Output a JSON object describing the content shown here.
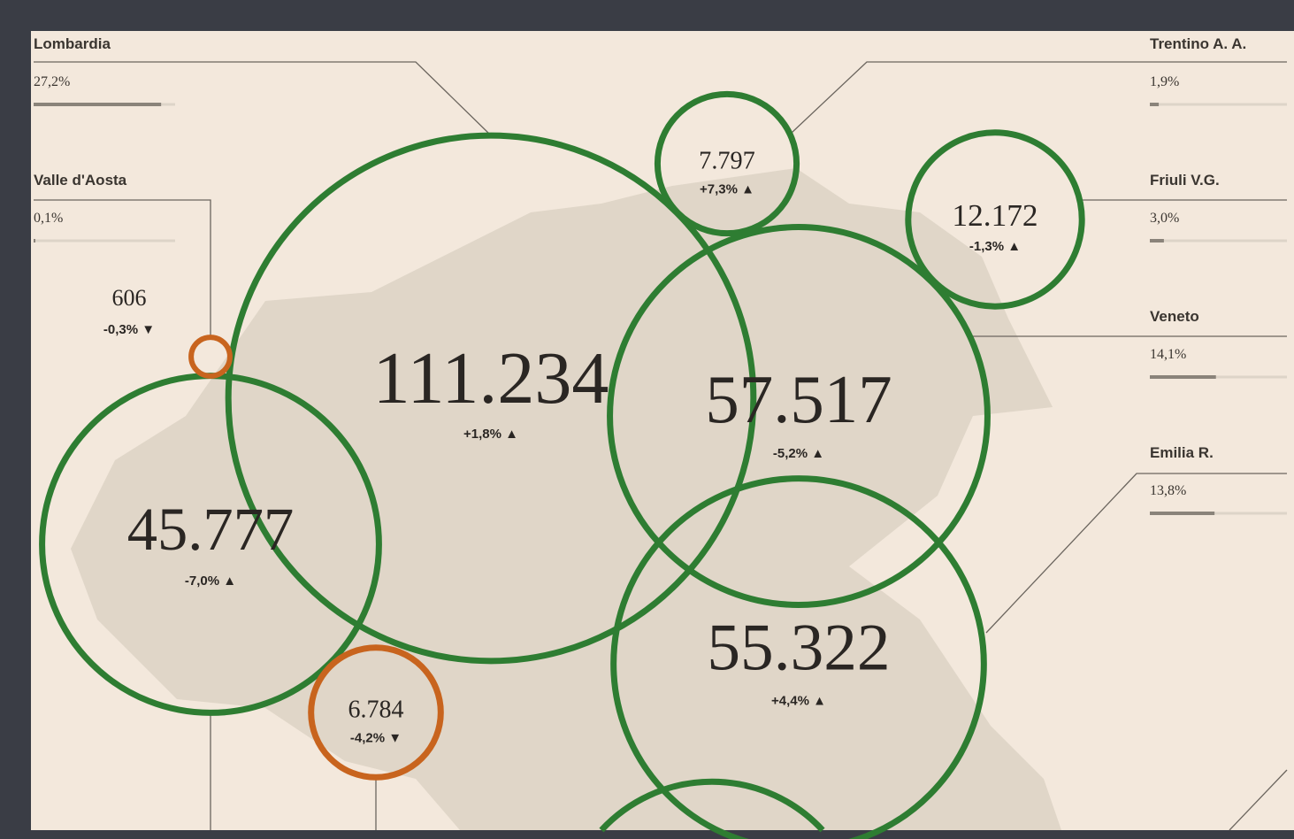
{
  "left_labels": [
    {
      "name": "Lombardia",
      "share_label": "27,2%",
      "share": 27.2
    },
    {
      "name": "Valle d'Aosta",
      "share_label": "0,1%",
      "share": 0.1
    }
  ],
  "right_labels": [
    {
      "name": "Trentino A. A.",
      "share_label": "1,9%",
      "share": 1.9
    },
    {
      "name": "Friuli V.G.",
      "share_label": "3,0%",
      "share": 3.0
    },
    {
      "name": "Veneto",
      "share_label": "14,1%",
      "share": 14.1
    },
    {
      "name": "Emilia R.",
      "share_label": "13,8%",
      "share": 13.8
    }
  ],
  "bubbles": [
    {
      "value": 111234,
      "label": "111.234",
      "change": "+1,8% ▲",
      "color": "#2e7d32"
    },
    {
      "value": 7797,
      "label": "7.797",
      "change": "+7,3% ▲",
      "color": "#2e7d32"
    },
    {
      "value": 12172,
      "label": "12.172",
      "change": "-1,3% ▲",
      "color": "#2e7d32"
    },
    {
      "value": 57517,
      "label": "57.517",
      "change": "-5,2% ▲",
      "color": "#2e7d32"
    },
    {
      "value": 45777,
      "label": "45.777",
      "change": "-7,0% ▲",
      "color": "#2e7d32"
    },
    {
      "value": 606,
      "label": "606",
      "change": "-0,3% ▼",
      "color": "#c8641e"
    },
    {
      "value": 6784,
      "label": "6.784",
      "change": "-4,2% ▼",
      "color": "#c8641e"
    },
    {
      "value": 55322,
      "label": "55.322",
      "change": "+4,4% ▲",
      "color": "#2e7d32"
    }
  ]
}
